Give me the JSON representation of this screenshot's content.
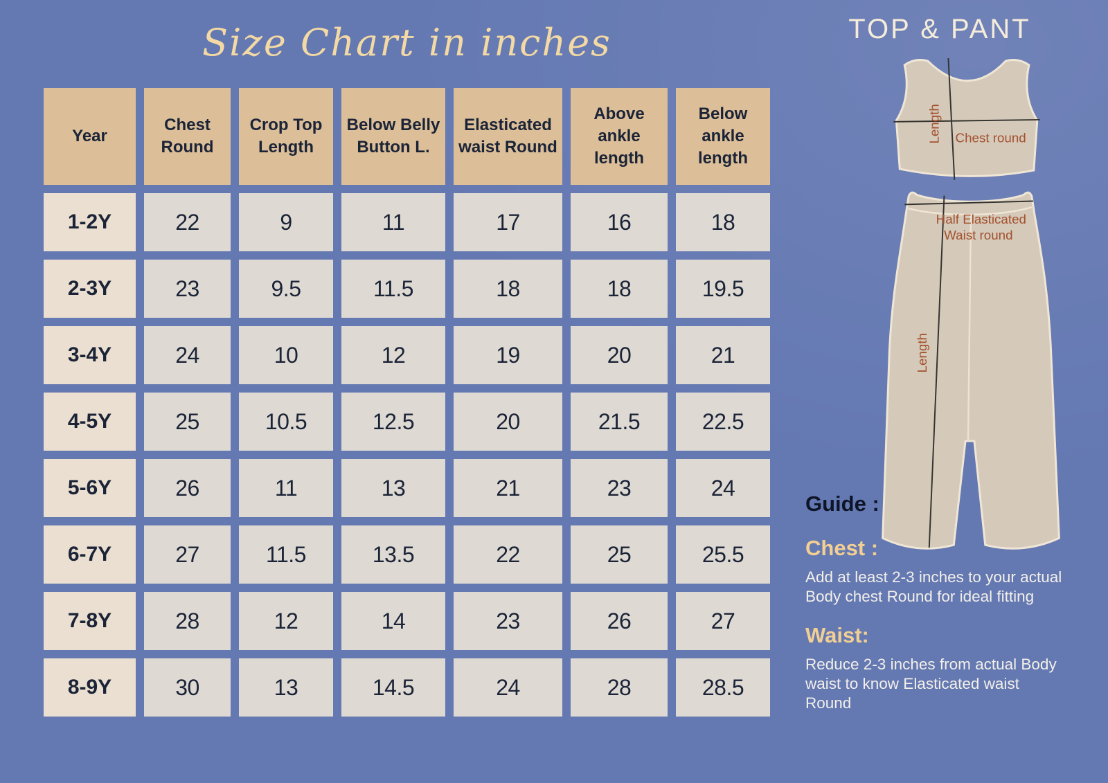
{
  "page": {
    "title": "Size Chart in inches",
    "set_title": "TOP & PANT"
  },
  "table": {
    "headers": [
      "Year",
      "Chest Round",
      "Crop Top Length",
      "Below Belly Button L.",
      "Elasticated waist Round",
      "Above ankle length",
      "Below ankle length"
    ],
    "rows": [
      {
        "year": "1-2Y",
        "values": [
          "22",
          "9",
          "11",
          "17",
          "16",
          "18"
        ]
      },
      {
        "year": "2-3Y",
        "values": [
          "23",
          "9.5",
          "11.5",
          "18",
          "18",
          "19.5"
        ]
      },
      {
        "year": "3-4Y",
        "values": [
          "24",
          "10",
          "12",
          "19",
          "20",
          "21"
        ]
      },
      {
        "year": "4-5Y",
        "values": [
          "25",
          "10.5",
          "12.5",
          "20",
          "21.5",
          "22.5"
        ]
      },
      {
        "year": "5-6Y",
        "values": [
          "26",
          "11",
          "13",
          "21",
          "23",
          "24"
        ]
      },
      {
        "year": "6-7Y",
        "values": [
          "27",
          "11.5",
          "13.5",
          "22",
          "25",
          "25.5"
        ]
      },
      {
        "year": "7-8Y",
        "values": [
          "28",
          "12",
          "14",
          "23",
          "26",
          "27"
        ]
      },
      {
        "year": "8-9Y",
        "values": [
          "30",
          "13",
          "14.5",
          "24",
          "28",
          "28.5"
        ]
      }
    ]
  },
  "diagram": {
    "top_length_label": "Length",
    "chest_round_label": "Chest round",
    "pant_waist_label_line1": "Half Elasticated",
    "pant_waist_label_line2": "Waist round",
    "pant_length_label": "Length"
  },
  "guide": {
    "heading": "Guide :",
    "chest_heading": "Chest :",
    "chest_text": "Add at least 2-3 inches to your actual Body chest Round for ideal fitting",
    "waist_heading": "Waist:",
    "waist_text": "Reduce  2-3 inches from actual Body waist  to know Elasticated waist Round"
  },
  "colors": {
    "background": "#6478b2",
    "header_cell": "#dcbf98",
    "year_cell": "#eadfd0",
    "value_cell": "#dedad3",
    "dark_text": "#1b2337",
    "title_gold": "#f3d9a4",
    "accent_gold": "#f2cf92",
    "body_text": "#f3f0e9",
    "garment_fill": "#d5c9ba",
    "garment_outline": "#efe6d6",
    "diagram_label": "#a3502d"
  }
}
